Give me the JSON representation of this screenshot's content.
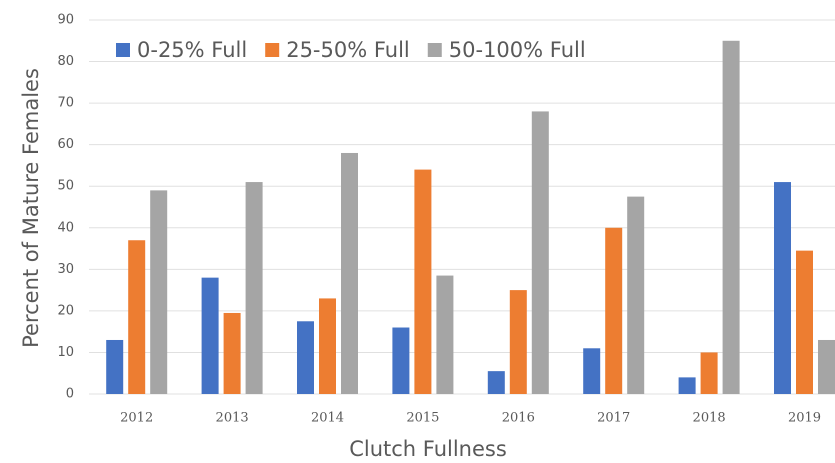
{
  "chart_data": {
    "type": "bar",
    "x_label": "Clutch Fullness",
    "y_label": "Percent of Mature Females",
    "categories": [
      "2012",
      "2013",
      "2014",
      "2015",
      "2016",
      "2017",
      "2018",
      "2019"
    ],
    "series": [
      {
        "name": "0-25% Full",
        "color": "#4472c4",
        "values": [
          13,
          28,
          17.5,
          16,
          5.5,
          11,
          4,
          51
        ]
      },
      {
        "name": "25-50% Full",
        "color": "#ed7d31",
        "values": [
          37,
          19.5,
          23,
          54,
          25,
          40,
          10,
          34.5
        ]
      },
      {
        "name": "50-100% Full",
        "color": "#a5a5a5",
        "values": [
          49,
          51,
          58,
          28.5,
          68,
          47.5,
          85,
          13
        ]
      }
    ],
    "ylim": [
      0,
      90
    ],
    "yticks": [
      0,
      10,
      20,
      30,
      40,
      50,
      60,
      70,
      80,
      90
    ],
    "grid": true,
    "legend": "upper left"
  }
}
